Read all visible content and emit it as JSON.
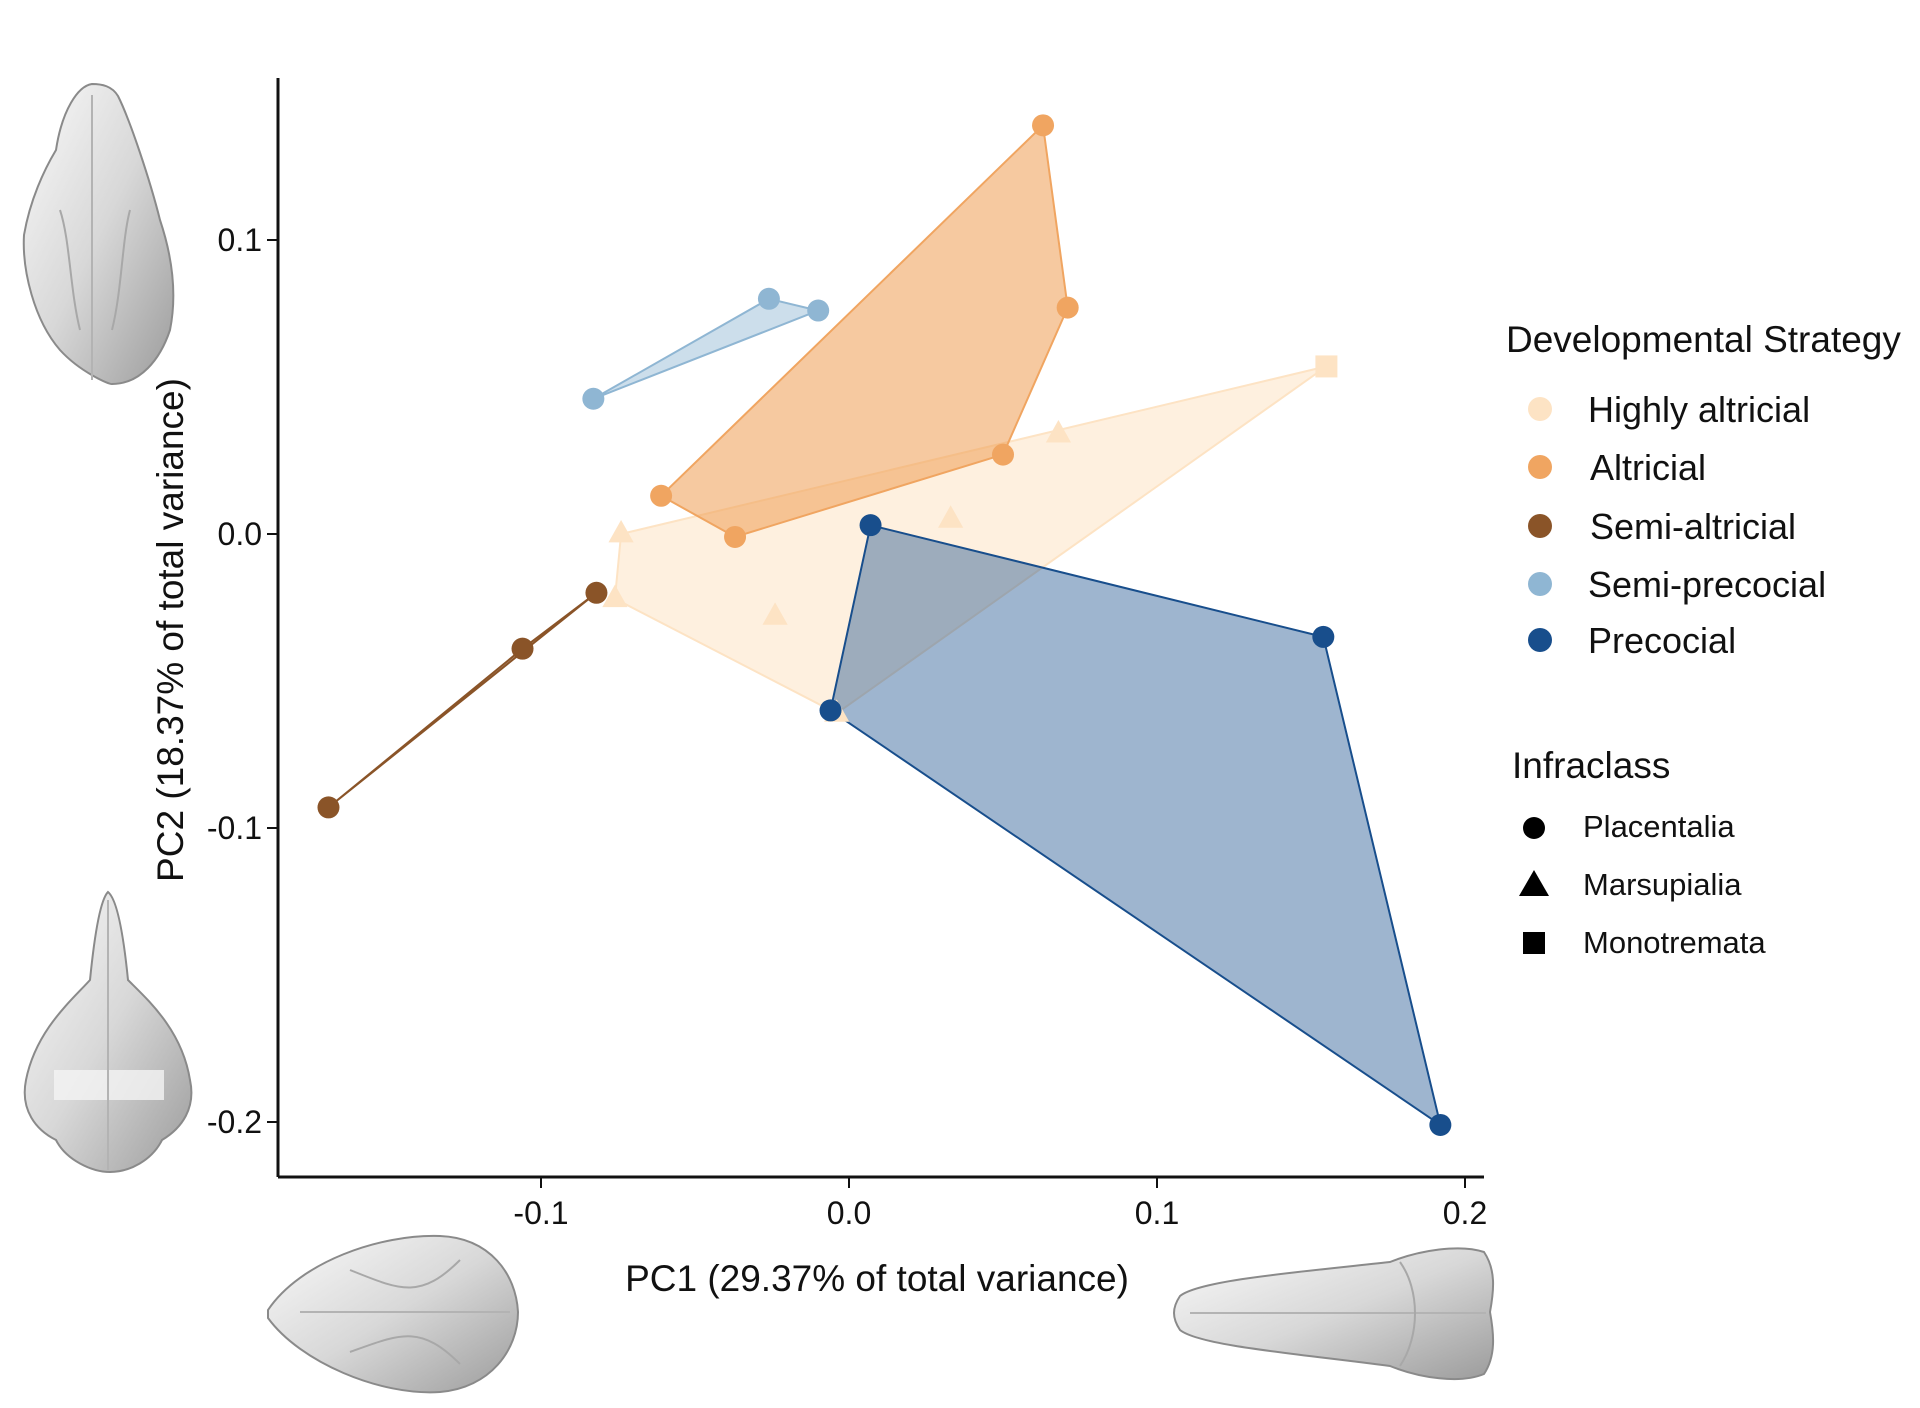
{
  "chart_data": {
    "type": "scatter",
    "xlabel": "PC1 (29.37% of total variance)",
    "ylabel": "PC2 (18.37% of total variance)",
    "xlim": [
      -0.185,
      0.21
    ],
    "ylim": [
      -0.21,
      0.155
    ],
    "x_ticks": [
      -0.1,
      0.0,
      0.1,
      0.2
    ],
    "x_tick_labels": [
      "-0.1",
      "0.0",
      "0.1",
      "0.2"
    ],
    "y_ticks": [
      0.1,
      0.0,
      -0.1,
      -0.2
    ],
    "y_tick_labels": [
      "0.1",
      "0.0",
      "-0.1",
      "-0.2"
    ],
    "grid": false,
    "legend_position": "right",
    "legends": {
      "color": {
        "title": "Developmental Strategy",
        "entries": [
          {
            "name": "Highly altricial",
            "color": "#fde3c4"
          },
          {
            "name": "Altricial",
            "color": "#f0a561"
          },
          {
            "name": "Semi-altricial",
            "color": "#8a5428"
          },
          {
            "name": "Semi-precocial",
            "color": "#8fb6d3"
          },
          {
            "name": "Precocial",
            "color": "#184e8c"
          }
        ]
      },
      "shape": {
        "title": "Infraclass",
        "entries": [
          {
            "name": "Placentalia",
            "shape": "circle"
          },
          {
            "name": "Marsupialia",
            "shape": "triangle"
          },
          {
            "name": "Monotremata",
            "shape": "square"
          }
        ]
      }
    },
    "series": [
      {
        "name": "Highly altricial",
        "points": [
          {
            "x": 0.155,
            "y": 0.057,
            "shape": "square"
          },
          {
            "x": 0.068,
            "y": 0.034,
            "shape": "triangle"
          },
          {
            "x": 0.033,
            "y": 0.005,
            "shape": "triangle"
          },
          {
            "x": -0.074,
            "y": 0.0,
            "shape": "triangle"
          },
          {
            "x": -0.076,
            "y": -0.022,
            "shape": "triangle"
          },
          {
            "x": -0.024,
            "y": -0.028,
            "shape": "triangle"
          },
          {
            "x": -0.004,
            "y": -0.061,
            "shape": "triangle"
          }
        ]
      },
      {
        "name": "Altricial",
        "points": [
          {
            "x": 0.063,
            "y": 0.139,
            "shape": "circle"
          },
          {
            "x": 0.071,
            "y": 0.077,
            "shape": "circle"
          },
          {
            "x": 0.05,
            "y": 0.027,
            "shape": "circle"
          },
          {
            "x": -0.037,
            "y": -0.001,
            "shape": "circle"
          },
          {
            "x": -0.061,
            "y": 0.013,
            "shape": "circle"
          }
        ]
      },
      {
        "name": "Semi-altricial",
        "points": [
          {
            "x": -0.082,
            "y": -0.02,
            "shape": "circle"
          },
          {
            "x": -0.106,
            "y": -0.039,
            "shape": "circle"
          },
          {
            "x": -0.169,
            "y": -0.093,
            "shape": "circle"
          }
        ]
      },
      {
        "name": "Semi-precocial",
        "points": [
          {
            "x": -0.026,
            "y": 0.08,
            "shape": "circle"
          },
          {
            "x": -0.01,
            "y": 0.076,
            "shape": "circle"
          },
          {
            "x": -0.083,
            "y": 0.046,
            "shape": "circle"
          }
        ]
      },
      {
        "name": "Precocial",
        "points": [
          {
            "x": 0.007,
            "y": 0.003,
            "shape": "circle"
          },
          {
            "x": 0.154,
            "y": -0.035,
            "shape": "circle"
          },
          {
            "x": 0.192,
            "y": -0.201,
            "shape": "circle"
          },
          {
            "x": -0.006,
            "y": -0.06,
            "shape": "circle"
          }
        ]
      }
    ],
    "hulls": [
      {
        "series": "Highly altricial",
        "opacity": 0.55,
        "vertices": [
          [
            0.155,
            0.057
          ],
          [
            -0.004,
            -0.061
          ],
          [
            -0.076,
            -0.022
          ],
          [
            -0.074,
            0.0
          ]
        ]
      },
      {
        "series": "Altricial",
        "opacity": 0.6,
        "vertices": [
          [
            0.063,
            0.139
          ],
          [
            0.071,
            0.077
          ],
          [
            0.05,
            0.027
          ],
          [
            -0.037,
            -0.001
          ],
          [
            -0.061,
            0.013
          ]
        ]
      },
      {
        "series": "Semi-altricial",
        "opacity": 0.6,
        "vertices": [
          [
            -0.082,
            -0.02
          ],
          [
            -0.106,
            -0.039
          ],
          [
            -0.169,
            -0.093
          ]
        ]
      },
      {
        "series": "Semi-precocial",
        "opacity": 0.45,
        "vertices": [
          [
            -0.026,
            0.08
          ],
          [
            -0.01,
            0.076
          ],
          [
            -0.083,
            0.046
          ]
        ]
      },
      {
        "series": "Precocial",
        "opacity": 0.42,
        "vertices": [
          [
            0.007,
            0.003
          ],
          [
            0.154,
            -0.035
          ],
          [
            0.192,
            -0.201
          ],
          [
            -0.006,
            -0.06
          ]
        ]
      }
    ]
  }
}
